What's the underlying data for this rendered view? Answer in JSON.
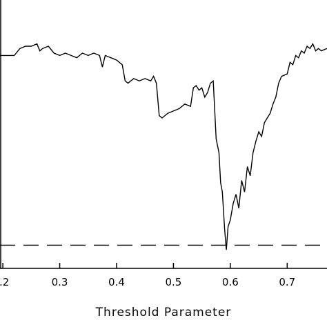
{
  "chart_data": {
    "type": "line",
    "title": "",
    "xlabel": "Threshold Parameter",
    "ylabel": "",
    "xlim": [
      0.195,
      0.77
    ],
    "ylim": [
      -0.1,
      1.0
    ],
    "x_ticks": [
      0.2,
      0.3,
      0.4,
      0.5,
      0.6,
      0.7
    ],
    "x_tick_labels": [
      ".2",
      "0.3",
      "0.4",
      "0.5",
      "0.6",
      "0.7"
    ],
    "grid": false,
    "colors": {
      "line": "#000000",
      "axes": "#000000",
      "background": "#ffffff"
    },
    "reference_line": {
      "style": "dashed",
      "y": 0.0
    },
    "series": [
      {
        "values": [
          [
            0.195,
            0.82
          ],
          [
            0.22,
            0.82
          ],
          [
            0.23,
            0.85
          ],
          [
            0.24,
            0.86
          ],
          [
            0.25,
            0.86
          ],
          [
            0.26,
            0.87
          ],
          [
            0.265,
            0.84
          ],
          [
            0.27,
            0.85
          ],
          [
            0.28,
            0.86
          ],
          [
            0.29,
            0.83
          ],
          [
            0.3,
            0.82
          ],
          [
            0.31,
            0.83
          ],
          [
            0.32,
            0.82
          ],
          [
            0.33,
            0.81
          ],
          [
            0.34,
            0.83
          ],
          [
            0.35,
            0.82
          ],
          [
            0.36,
            0.83
          ],
          [
            0.37,
            0.82
          ],
          [
            0.375,
            0.77
          ],
          [
            0.38,
            0.82
          ],
          [
            0.39,
            0.81
          ],
          [
            0.4,
            0.8
          ],
          [
            0.41,
            0.78
          ],
          [
            0.415,
            0.71
          ],
          [
            0.42,
            0.7
          ],
          [
            0.43,
            0.72
          ],
          [
            0.44,
            0.71
          ],
          [
            0.45,
            0.72
          ],
          [
            0.46,
            0.71
          ],
          [
            0.465,
            0.73
          ],
          [
            0.47,
            0.7
          ],
          [
            0.475,
            0.56
          ],
          [
            0.48,
            0.55
          ],
          [
            0.49,
            0.57
          ],
          [
            0.5,
            0.58
          ],
          [
            0.51,
            0.59
          ],
          [
            0.52,
            0.61
          ],
          [
            0.53,
            0.6
          ],
          [
            0.535,
            0.68
          ],
          [
            0.54,
            0.69
          ],
          [
            0.545,
            0.67
          ],
          [
            0.55,
            0.68
          ],
          [
            0.555,
            0.64
          ],
          [
            0.56,
            0.66
          ],
          [
            0.565,
            0.7
          ],
          [
            0.57,
            0.71
          ],
          [
            0.575,
            0.46
          ],
          [
            0.58,
            0.4
          ],
          [
            0.583,
            0.27
          ],
          [
            0.586,
            0.23
          ],
          [
            0.59,
            0.07
          ],
          [
            0.593,
            -0.02
          ],
          [
            0.596,
            0.08
          ],
          [
            0.6,
            0.11
          ],
          [
            0.605,
            0.18
          ],
          [
            0.61,
            0.22
          ],
          [
            0.615,
            0.16
          ],
          [
            0.62,
            0.28
          ],
          [
            0.625,
            0.23
          ],
          [
            0.63,
            0.34
          ],
          [
            0.635,
            0.3
          ],
          [
            0.64,
            0.4
          ],
          [
            0.645,
            0.45
          ],
          [
            0.65,
            0.49
          ],
          [
            0.655,
            0.47
          ],
          [
            0.66,
            0.53
          ],
          [
            0.665,
            0.55
          ],
          [
            0.67,
            0.57
          ],
          [
            0.675,
            0.61
          ],
          [
            0.68,
            0.64
          ],
          [
            0.685,
            0.7
          ],
          [
            0.69,
            0.73
          ],
          [
            0.7,
            0.74
          ],
          [
            0.705,
            0.79
          ],
          [
            0.71,
            0.78
          ],
          [
            0.715,
            0.82
          ],
          [
            0.72,
            0.81
          ],
          [
            0.725,
            0.84
          ],
          [
            0.73,
            0.83
          ],
          [
            0.735,
            0.86
          ],
          [
            0.74,
            0.85
          ],
          [
            0.745,
            0.87
          ],
          [
            0.75,
            0.84
          ],
          [
            0.755,
            0.85
          ],
          [
            0.76,
            0.84
          ],
          [
            0.77,
            0.85
          ]
        ]
      }
    ]
  }
}
